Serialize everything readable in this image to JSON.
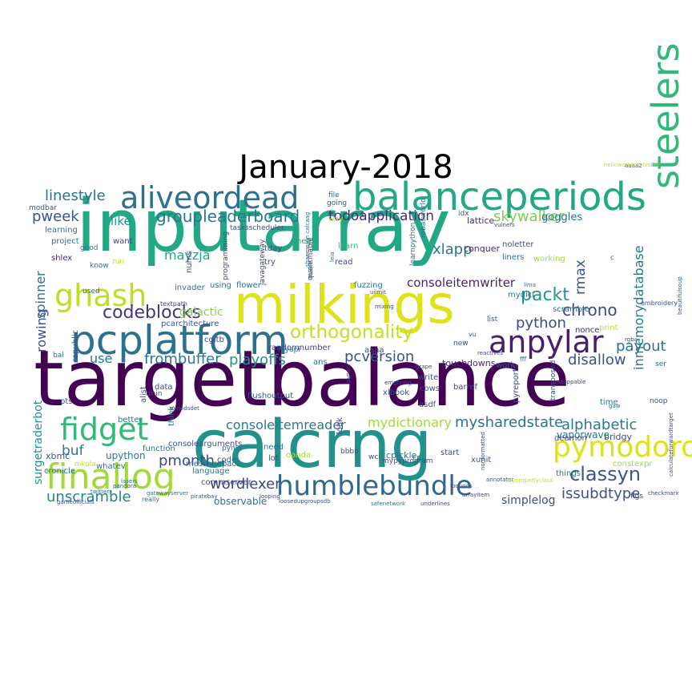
{
  "title": "January-2018",
  "colormap": [
    "#440154",
    "#472d7b",
    "#3b528b",
    "#2c728e",
    "#21918c",
    "#28ae80",
    "#5ec962",
    "#addc30",
    "#fde725"
  ],
  "words": [
    {
      "text": "inputarray",
      "color": "#22a884"
    },
    {
      "text": "targetbalance",
      "color": "#440154"
    },
    {
      "text": "calcrng",
      "color": "#21918c"
    },
    {
      "text": "milkings",
      "color": "#dde318"
    },
    {
      "text": "pcplatform",
      "color": "#2c728e"
    },
    {
      "text": "balanceperiods",
      "color": "#22a884"
    },
    {
      "text": "aliveordead",
      "color": "#2c728e"
    },
    {
      "text": "ghash",
      "color": "#bddf26"
    },
    {
      "text": "steelers",
      "color": "#35b779"
    },
    {
      "text": "anpylar",
      "color": "#481f70"
    },
    {
      "text": "fidget",
      "color": "#35b779"
    },
    {
      "text": "finallog",
      "color": "#a2da37"
    },
    {
      "text": "humblebundle",
      "color": "#31688e"
    },
    {
      "text": "pymodoro",
      "color": "#dde318"
    },
    {
      "text": "orthogonality",
      "color": "#c2df23"
    },
    {
      "text": "classyn",
      "color": "#39568c"
    },
    {
      "text": "codeblocks",
      "color": "#46337f"
    },
    {
      "text": "groupleaderboard",
      "color": "#2a788e"
    },
    {
      "text": "todoapplication",
      "color": "#472d7b"
    },
    {
      "text": "skywalker",
      "color": "#7ad151"
    },
    {
      "text": "linestyle",
      "color": "#2c728e"
    },
    {
      "text": "pweek",
      "color": "#3b528b"
    },
    {
      "text": "packt",
      "color": "#1f988b"
    },
    {
      "text": "chrono",
      "color": "#3e4a89"
    },
    {
      "text": "python",
      "color": "#3e4a89"
    },
    {
      "text": "payout",
      "color": "#2c728e"
    },
    {
      "text": "disallow",
      "color": "#3b528b"
    },
    {
      "text": "pcversion",
      "color": "#3b528b"
    },
    {
      "text": "playoffs",
      "color": "#21918c"
    },
    {
      "text": "frombuffer",
      "color": "#2a788e"
    },
    {
      "text": "alphabetic",
      "color": "#2a788e"
    },
    {
      "text": "mysharedstate",
      "color": "#2c728e"
    },
    {
      "text": "mydictionary",
      "color": "#a0da39"
    },
    {
      "text": "consoleitemreader",
      "color": "#2a788e"
    },
    {
      "text": "consoleitemwriter",
      "color": "#481f70"
    },
    {
      "text": "wordlexer",
      "color": "#414487"
    },
    {
      "text": "unscramble",
      "color": "#26828e"
    },
    {
      "text": "issubdtype",
      "color": "#3b528b"
    },
    {
      "text": "pmonth",
      "color": "#3e4a89"
    },
    {
      "text": "buf",
      "color": "#2a788e"
    },
    {
      "text": "xlapp",
      "color": "#2a788e"
    },
    {
      "text": "mayzja",
      "color": "#20a386"
    },
    {
      "text": "like",
      "color": "#21918c"
    },
    {
      "text": "rmax",
      "color": "#3b528b"
    },
    {
      "text": "rowing",
      "color": "#3e4a89"
    },
    {
      "text": "spinner",
      "color": "#2c728e"
    },
    {
      "text": "inmemorydatabase",
      "color": "#2a788e"
    },
    {
      "text": "use",
      "color": "#2c728e"
    },
    {
      "text": "galactic",
      "color": "#84d44b"
    },
    {
      "text": "simplelog",
      "color": "#3e4a89"
    },
    {
      "text": "observable",
      "color": "#2c728e"
    },
    {
      "text": "goggles",
      "color": "#2c728e"
    },
    {
      "text": "lattice",
      "color": "#472d7b"
    },
    {
      "text": "touchdowns",
      "color": "#482878"
    },
    {
      "text": "vaporwave",
      "color": "#2c728e"
    },
    {
      "text": "surgetraderbot",
      "color": "#21918c"
    },
    {
      "text": "xbmc",
      "color": "#3b528b"
    },
    {
      "text": "upython",
      "color": "#2a788e"
    },
    {
      "text": "project",
      "color": "#2c728e"
    },
    {
      "text": "want",
      "color": "#414487"
    },
    {
      "text": "learning",
      "color": "#2c728e"
    },
    {
      "text": "shlex",
      "color": "#482878"
    },
    {
      "text": "tday",
      "color": "#3e4a89"
    },
    {
      "text": "help",
      "color": "#27ad81"
    },
    {
      "text": "learn",
      "color": "#35b779"
    },
    {
      "text": "read",
      "color": "#3e4a89"
    },
    {
      "text": "try",
      "color": "#3b528b"
    },
    {
      "text": "invader",
      "color": "#2c728e"
    },
    {
      "text": "nums",
      "color": "#3e4a89"
    },
    {
      "text": "flower",
      "color": "#2c728e"
    },
    {
      "text": "using",
      "color": "#2c728e"
    },
    {
      "text": "fuzzing",
      "color": "#2c728e"
    },
    {
      "text": "conquer",
      "color": "#482878"
    },
    {
      "text": "noletter",
      "color": "#3b528b"
    },
    {
      "text": "liners",
      "color": "#2c728e"
    },
    {
      "text": "working",
      "color": "#a0da39"
    },
    {
      "text": "mydict",
      "color": "#2c728e"
    },
    {
      "text": "scramble",
      "color": "#2c728e"
    },
    {
      "text": "nonce",
      "color": "#472d7b"
    },
    {
      "text": "print",
      "color": "#bddf26"
    },
    {
      "text": "deamon",
      "color": "#3e4a89"
    },
    {
      "text": "bridgy",
      "color": "#3e4a89"
    },
    {
      "text": "constexpr",
      "color": "#a0da39"
    },
    {
      "text": "xunit",
      "color": "#3b528b"
    },
    {
      "text": "start",
      "color": "#3e4a89"
    },
    {
      "text": "things",
      "color": "#2a788e"
    },
    {
      "text": "cpickle",
      "color": "#2c728e"
    },
    {
      "text": "need",
      "color": "#2c728e"
    },
    {
      "text": "lot",
      "color": "#3e4a89"
    },
    {
      "text": "look",
      "color": "#3e4a89"
    },
    {
      "text": "cows",
      "color": "#3b528b"
    },
    {
      "text": "asdf",
      "color": "#3b528b"
    },
    {
      "text": "xlbook",
      "color": "#3b528b"
    },
    {
      "text": "aaaa",
      "color": "#3e4a89"
    },
    {
      "text": "ans",
      "color": "#2c728e"
    },
    {
      "text": "barref",
      "color": "#3e4a89"
    },
    {
      "text": "write",
      "color": "#3e4a89"
    },
    {
      "text": "flushoutput",
      "color": "#3b528b"
    },
    {
      "text": "function",
      "color": "#2c728e"
    },
    {
      "text": "better",
      "color": "#2c728e"
    },
    {
      "text": "code",
      "color": "#3b528b"
    },
    {
      "text": "language",
      "color": "#2c728e"
    },
    {
      "text": "whatev",
      "color": "#2c728e"
    },
    {
      "text": "consolearguments",
      "color": "#3b528b"
    },
    {
      "text": "cronicle",
      "color": "#2c728e"
    },
    {
      "text": "modbar",
      "color": "#3b528b"
    },
    {
      "text": "randomnumber",
      "color": "#414487"
    },
    {
      "text": "commserver",
      "color": "#3e4a89"
    },
    {
      "text": "pcarchitecture",
      "color": "#3b528b"
    },
    {
      "text": "data",
      "color": "#3e4a89"
    },
    {
      "text": "cgitb",
      "color": "#3e4a89"
    },
    {
      "text": "republic",
      "color": "#3b528b"
    },
    {
      "text": "alist",
      "color": "#3b528b"
    },
    {
      "text": "think",
      "color": "#2c728e"
    },
    {
      "text": "work",
      "color": "#3b528b"
    },
    {
      "text": "pyreports",
      "color": "#3e4a89"
    },
    {
      "text": "time",
      "color": "#2c728e"
    },
    {
      "text": "noop",
      "color": "#3e4a89"
    },
    {
      "text": "ser",
      "color": "#2c728e"
    },
    {
      "text": "bal",
      "color": "#2c728e"
    },
    {
      "text": "pts",
      "color": "#3b528b"
    },
    {
      "text": "really",
      "color": "#2c728e"
    },
    {
      "text": "figs",
      "color": "#3e4a89"
    },
    {
      "text": "file",
      "color": "#2c728e"
    },
    {
      "text": "going",
      "color": "#3b528b"
    },
    {
      "text": "way",
      "color": "#bddf26"
    },
    {
      "text": "good",
      "color": "#2c728e"
    },
    {
      "text": "know",
      "color": "#2c728e"
    },
    {
      "text": "used",
      "color": "#2c728e"
    },
    {
      "text": "run",
      "color": "#bddf26"
    },
    {
      "text": "tasksscheduler",
      "color": "#3b528b"
    },
    {
      "text": "learnpython",
      "color": "#2c728e"
    },
    {
      "text": "robasworld",
      "color": "#2c728e"
    },
    {
      "text": "idx",
      "color": "#3b528b"
    },
    {
      "text": "new",
      "color": "#3e4a89"
    },
    {
      "text": "myapi",
      "color": "#2c728e"
    },
    {
      "text": "programming",
      "color": "#3e4a89"
    },
    {
      "text": "javagateway",
      "color": "#3e4a89"
    },
    {
      "text": "quantifiable",
      "color": "#3e4a89"
    },
    {
      "text": "transposed",
      "color": "#3e4a89"
    },
    {
      "text": "list",
      "color": "#3b528b"
    },
    {
      "text": "mypyprogram",
      "color": "#3b528b"
    },
    {
      "text": "bbbb",
      "color": "#3b528b"
    },
    {
      "text": "wci",
      "color": "#3e4a89"
    },
    {
      "text": "cr",
      "color": "#3e4a89"
    },
    {
      "text": "pynio",
      "color": "#2c728e"
    },
    {
      "text": "oanda",
      "color": "#a0da39"
    },
    {
      "text": "messagepack",
      "color": "#2c728e"
    },
    {
      "text": "nikola",
      "color": "#bddf26"
    },
    {
      "text": "rmin",
      "color": "#3b528b"
    },
    {
      "text": "embroidery",
      "color": "#3b528b"
    },
    {
      "text": "textpath",
      "color": "#3e4a89"
    },
    {
      "text": "make",
      "color": "#2c728e"
    },
    {
      "text": "vu",
      "color": "#3b528b"
    },
    {
      "text": "c",
      "color": "#3b528b"
    },
    {
      "text": "fff",
      "color": "#2c728e"
    },
    {
      "text": "aaaa2",
      "color": "#3b528b"
    },
    {
      "text": "helloworldcontroller",
      "color": "#bddf26"
    },
    {
      "text": "vulners",
      "color": "#3e4a89"
    },
    {
      "text": "shanession calcaag",
      "color": "#2c728e"
    },
    {
      "text": "leia",
      "color": "#2c728e"
    },
    {
      "text": "mixing",
      "color": "#3b528b"
    },
    {
      "text": "lima",
      "color": "#2c728e"
    },
    {
      "text": "rgba",
      "color": "#3b528b"
    },
    {
      "text": "reactives",
      "color": "#3e4a89"
    },
    {
      "text": "grape",
      "color": "#3b528b"
    },
    {
      "text": "emptying",
      "color": "#3e4a89"
    },
    {
      "text": "pynaci",
      "color": "#3b528b"
    },
    {
      "text": "beautifulsoup",
      "color": "#3b528b"
    },
    {
      "text": "unstoppable",
      "color": "#3e4a89"
    },
    {
      "text": "checkmarx",
      "color": "#3e4a89"
    },
    {
      "text": "calculateforwardtarget",
      "color": "#3e4a89"
    },
    {
      "text": "gaw",
      "color": "#2c728e"
    },
    {
      "text": "pandora",
      "color": "#3b528b"
    },
    {
      "text": "twitters",
      "color": "#2c728e"
    },
    {
      "text": "gameofficials",
      "color": "#3b528b"
    },
    {
      "text": "gatewayserver",
      "color": "#2c728e"
    },
    {
      "text": "piratebay",
      "color": "#3b528b"
    },
    {
      "text": "looping",
      "color": "#3e4a89"
    },
    {
      "text": "loosedupgroupsdb",
      "color": "#3b528b"
    },
    {
      "text": "safenetwork",
      "color": "#2c728e"
    },
    {
      "text": "underlines",
      "color": "#3e4a89"
    },
    {
      "text": "arrayitem",
      "color": "#3e4a89"
    },
    {
      "text": "lasers",
      "color": "#2c728e"
    },
    {
      "text": "pynodsdet",
      "color": "#3b528b"
    },
    {
      "text": "ibounds",
      "color": "#3e4a89"
    },
    {
      "text": "nonformatted",
      "color": "#3b528b"
    },
    {
      "text": "annotator",
      "color": "#3b528b"
    },
    {
      "text": "mypropertyclass",
      "color": "#bddf26"
    },
    {
      "text": "uiimit",
      "color": "#3e4a89"
    }
  ]
}
